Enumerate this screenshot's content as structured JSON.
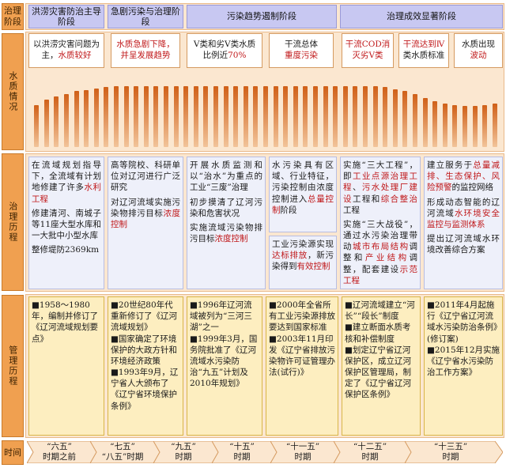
{
  "rows": {
    "stage": "治理阶段",
    "water": "水质情况",
    "governance": "治理历程",
    "management": "管理历程",
    "time": "时间"
  },
  "stages": [
    "洪涝灾害防治主导阶段",
    "急剧污染与治理阶段",
    "污染趋势遏制阶段",
    "治理成效显著阶段"
  ],
  "status": [
    {
      "normal": "以洪涝灾害问题为主，",
      "red": "水质较好",
      "tail": ""
    },
    {
      "normal": "",
      "red": "水质急剧下降，并呈发展趋势",
      "tail": ""
    },
    {
      "normal": "Ⅴ类和劣Ⅴ类水质比例近",
      "red": "70%",
      "tail": ""
    },
    {
      "normal": "干流总体",
      "red": "重度污染",
      "tail": ""
    },
    {
      "normal": "",
      "red": "干流COD消灭劣Ⅴ类",
      "tail": ""
    },
    {
      "normal": "",
      "red": "干流达到Ⅳ",
      "tail": "类水质标准"
    },
    {
      "normal": "水质出现",
      "red": "波动",
      "tail": ""
    }
  ],
  "water_bars": [
    0.62,
    0.7,
    0.74,
    0.78,
    0.82,
    0.84,
    0.86,
    0.88,
    0.9,
    0.9,
    0.9,
    0.9,
    0.9,
    0.9,
    0.9,
    0.9,
    0.9,
    0.9,
    0.9,
    0.9,
    0.9,
    0.9,
    0.9,
    0.9,
    0.9,
    0.9,
    0.9,
    0.9,
    0.9,
    0.9,
    0.9,
    0.9,
    0.9,
    0.9,
    0.9,
    0.88,
    0.85,
    0.82,
    0.78,
    0.72,
    0.68,
    0.64,
    0.62,
    0.6,
    0.6,
    0.62,
    0.64
  ],
  "governance": {
    "c1": {
      "p1a": "在流域规划指导下，全流域有计划地修建了许多",
      "p1b": "水利工程",
      "p2": "修建清河、南城子等11座大型水库和一大批中小型水库",
      "p3": "整修堤防2369km"
    },
    "c2": {
      "p1": "高等院校、科研单位对辽河进行广泛研究",
      "p2a": "对辽河流域实施污染物排污目标",
      "p2b": "浓度控制"
    },
    "c3": {
      "p1": "开展水质监测和以“治水”为重点的工业“三废”治理",
      "p2": "初步摸清了辽河污染和危害状况",
      "p3a": "实施流域污染物排污目标",
      "p3b": "浓度控制"
    },
    "c4": {
      "p1a": "水污染具有区域、行业特征，污染控制由浓度控制进入",
      "p1b": "总量控制",
      "p1c": "阶段",
      "p2a": "工业污染源实现",
      "p2b": "达标排放",
      "p2c": "，新污染得到",
      "p2d": "有效控制"
    },
    "c5": {
      "p1a": "实施“三大工程”，即",
      "p1b": "工业点源治理工程",
      "p1c": "、",
      "p1d": "污水处理厂建设",
      "p1e": "工程和",
      "p1f": "综合整治",
      "p1g": "工程",
      "p2a": "实施“三大战役”，通过水污染治理带动",
      "p2b": "城市布局结构",
      "p2c": "调整和",
      "p2d": "产业结构",
      "p2e": "调整，配套建设",
      "p2f": "示范工程"
    },
    "c6": {
      "p1a": "建立服务于",
      "p1b": "总量减排、生态保护、风险预警",
      "p1c": "的监控网络",
      "p2a": "形成动态智能的辽河流域",
      "p2b": "水环境安全监控与监测体系",
      "p3": "提出辽河流域水环境改善综合方案"
    }
  },
  "management": [
    [
      "1958～1980年，编制并修订了《辽河流域规划要点》"
    ],
    [
      "20世纪80年代重新修订了《辽河流域规划》",
      "国家确定了环境保护的大政方针和环境经济政策",
      "1993年9月，辽宁省人大颁布了《辽宁省环境保护条例》"
    ],
    [
      "1996年辽河流域被列为“三河三湖”之一",
      "1999年3月，国务院批准了《辽河流域水污染防治“九五”计划及2010年规划》"
    ],
    [
      "2000年全省所有工业污染源排放要达到国家标准",
      "2003年11月印发《辽宁省排放污染物许可证管理办法(试行)》"
    ],
    [
      "辽河流域建立“河长”“段长”制度",
      "建立断面水质考核和补偿制度",
      "划定辽宁省辽河保护区，成立辽河保护区管理局，制定了《辽宁省辽河保护区条例》"
    ],
    [
      "2011年4月起施行《辽宁省辽河流域水污染防治条例》(修订案)",
      "2015年12月实施《辽宁省水污染防治工作方案》"
    ]
  ],
  "time": [
    [
      "“六五”",
      "时期之前"
    ],
    [
      "“七五”",
      "“八五”时期"
    ],
    [
      "“九五”",
      "时期"
    ],
    [
      "“十五”",
      "时期"
    ],
    [
      "“十一五”",
      "时期"
    ],
    [
      "“十二五”",
      "时期"
    ],
    [
      "“十三五”",
      "时期"
    ]
  ],
  "colors": {
    "bar": "#d06018",
    "stage": "#c8c8f2",
    "label": "#f0a050",
    "red": "#c0181a",
    "mgmt": "#fdeec0"
  }
}
